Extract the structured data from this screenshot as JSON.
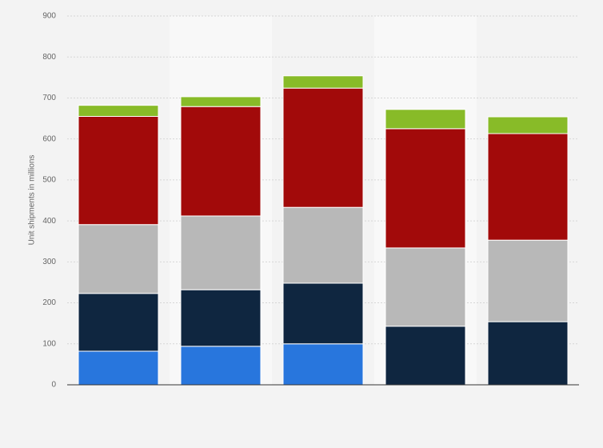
{
  "chart_data": {
    "type": "stacked-bar",
    "y_label": "Unit shipments in millions",
    "categories": [
      null,
      null,
      null,
      null,
      null
    ],
    "series": [
      {
        "color": "#2876dd",
        "values": [
          82,
          94,
          100,
          null,
          null
        ]
      },
      {
        "color": "#0f2640",
        "values": [
          141,
          138,
          148,
          143,
          154
        ]
      },
      {
        "color": "#b8b8b8",
        "values": [
          168,
          180,
          185,
          191,
          199
        ]
      },
      {
        "color": "#a20a0a",
        "values": [
          264,
          267,
          291,
          291,
          260
        ]
      },
      {
        "color": "#88bb28",
        "values": [
          27,
          24,
          30,
          47,
          41
        ]
      }
    ],
    "ylim": [
      0,
      900
    ],
    "yticks": [
      0,
      100,
      200,
      300,
      400,
      500,
      600,
      700,
      800,
      900
    ],
    "grid": true
  }
}
